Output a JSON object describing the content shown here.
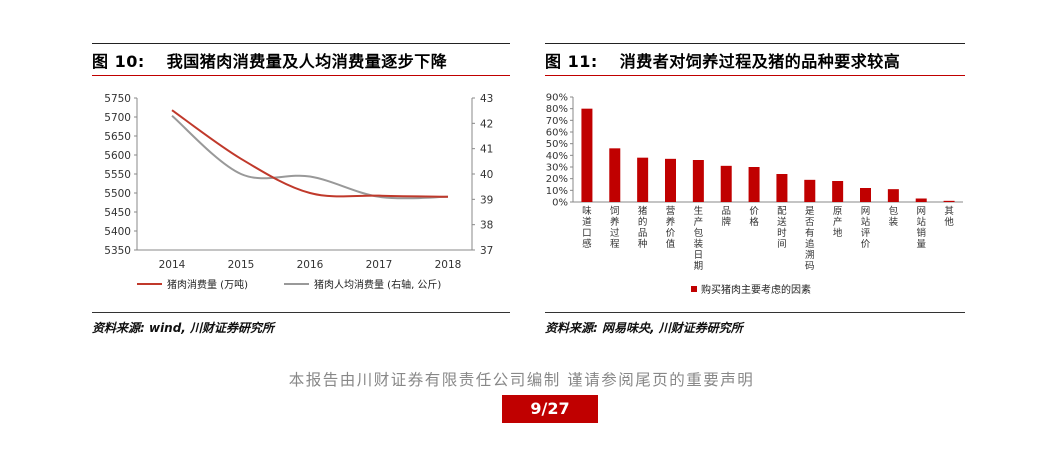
{
  "figure10": {
    "number": "图 10:",
    "title": "我国猪肉消费量及人均消费量逐步下降",
    "source": "资料来源: wind, 川财证券研究所"
  },
  "figure11": {
    "number": "图 11:",
    "title": "消费者对饲养过程及猪的品种要求较高",
    "source": "资料来源: 网易味央, 川财证券研究所"
  },
  "footer": {
    "statement": "本报告由川财证券有限责任公司编制 谨请参阅尾页的重要声明",
    "page": "9/27"
  },
  "colors": {
    "accent": "#c00000",
    "line_gray": "#999999",
    "line_red": "#c0392b"
  },
  "chart_data": [
    {
      "type": "line",
      "categories": [
        "2014",
        "2015",
        "2016",
        "2017",
        "2018"
      ],
      "y_left_ticks": [
        "5750",
        "5700",
        "5650",
        "5600",
        "5550",
        "5500",
        "5450",
        "5400",
        "5350"
      ],
      "y_right_ticks": [
        "43",
        "42",
        "41",
        "40",
        "39",
        "38",
        "37"
      ],
      "ylim": [
        5350,
        5750
      ],
      "ylim_right": [
        37,
        43
      ],
      "series": [
        {
          "name": "猪肉消费量 (万吨)",
          "axis": "left",
          "color": "#c0392b",
          "values": [
            5718,
            5590,
            5500,
            5493,
            5490
          ]
        },
        {
          "name": "猪肉人均消费量 (右轴, 公斤)",
          "axis": "right",
          "color": "#999999",
          "values": [
            42.3,
            40.0,
            39.9,
            39.1,
            39.1
          ]
        }
      ],
      "legend_position": "bottom"
    },
    {
      "type": "bar",
      "categories": [
        "味道口感",
        "饲养过程",
        "猪的品种",
        "营养价值",
        "生产包装日期",
        "品牌",
        "价格",
        "配送时间",
        "是否有追溯码",
        "原产地",
        "网站评价",
        "包装",
        "网站销量",
        "其他"
      ],
      "values": [
        80,
        46,
        38,
        37,
        36,
        31,
        30,
        24,
        19,
        18,
        12,
        11,
        3,
        1
      ],
      "y_ticks": [
        "90%",
        "80%",
        "70%",
        "60%",
        "50%",
        "40%",
        "30%",
        "20%",
        "10%",
        "0%"
      ],
      "ylim": [
        0,
        90
      ],
      "series": [
        {
          "name": "购买猪肉主要考虑的因素",
          "color": "#c00000"
        }
      ],
      "legend_position": "bottom"
    }
  ]
}
